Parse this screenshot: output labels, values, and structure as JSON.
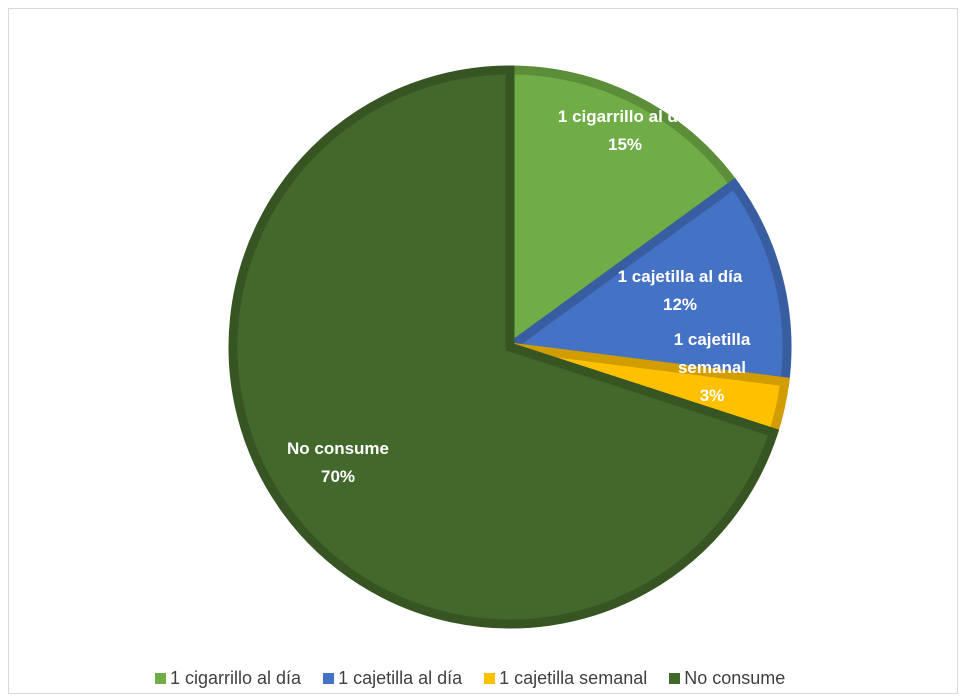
{
  "chart_data": {
    "type": "pie",
    "title": "",
    "start_angle_deg": 0,
    "direction": "clockwise",
    "slices": [
      {
        "label": "1 cigarrillo al día",
        "value": 15,
        "display": "15%",
        "color": "#70ad47",
        "label_lines": [
          "1 cigarrillo al día"
        ]
      },
      {
        "label": "1 cajetilla al día",
        "value": 12,
        "display": "12%",
        "color": "#4472c4",
        "label_lines": [
          "1 cajetilla al día"
        ]
      },
      {
        "label": "1 cajetilla semanal",
        "value": 3,
        "display": "3%",
        "color": "#ffc000",
        "label_lines": [
          "1 cajetilla",
          "semanal"
        ]
      },
      {
        "label": "No consume",
        "value": 70,
        "display": "70%",
        "color": "#43682b",
        "label_lines": [
          "No consume"
        ]
      }
    ],
    "legend_position": "bottom"
  }
}
